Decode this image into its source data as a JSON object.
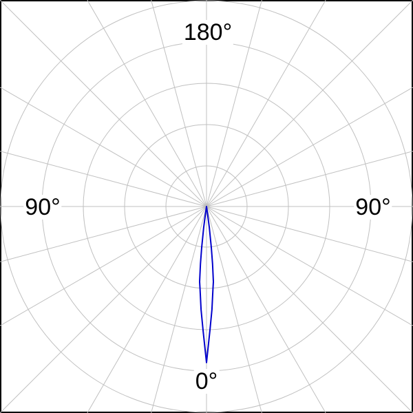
{
  "chart_data": {
    "type": "polar",
    "angle_labels": {
      "top": "180°",
      "bottom": "0°",
      "left": "90°",
      "right": "90°"
    },
    "radial_grid_rings": 5,
    "angular_grid_step_deg": 15,
    "grid": true,
    "grid_color": "#c0c0c0",
    "series": [
      {
        "color": "#0000cc",
        "symmetric": true,
        "angle_deg": [
          0,
          1.6,
          3,
          4.5,
          5.2,
          6,
          6.7,
          7.6,
          8.5,
          9
        ],
        "radius_rings": [
          3.78,
          3.0,
          2.5,
          2.0,
          1.83,
          1.4,
          1.0,
          0.5,
          0.15,
          0
        ]
      }
    ]
  }
}
